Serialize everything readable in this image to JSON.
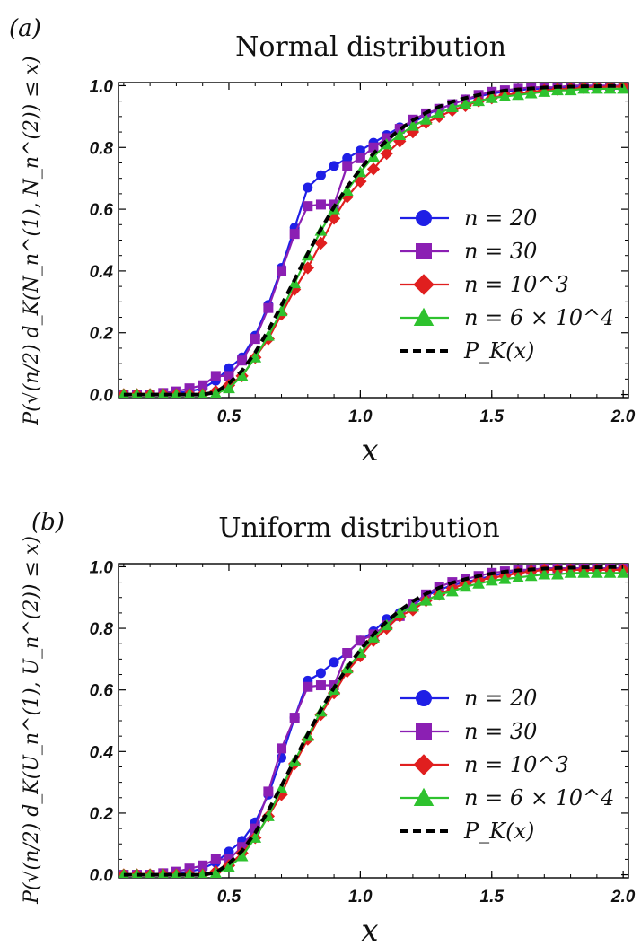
{
  "chart_data": [
    {
      "type": "line",
      "panel_label": "(a)",
      "title": "Normal distribution",
      "xlabel": "x",
      "ylabel": "P(√(n/2) d_K(N_n^(1), N_n^(2)) ≤ x)",
      "xlim": [
        0.08,
        2.02
      ],
      "ylim": [
        -0.01,
        1.01
      ],
      "xticks": [
        "0.5",
        "1.0",
        "1.5",
        "2.0"
      ],
      "yticks": [
        "0.0",
        "0.2",
        "0.4",
        "0.6",
        "0.8",
        "1.0"
      ],
      "legend_position": "center-right",
      "series": [
        {
          "name": "n = 20",
          "color": "#1f1fe6",
          "marker": "circle",
          "x": [
            0.1,
            0.15,
            0.2,
            0.25,
            0.3,
            0.35,
            0.4,
            0.45,
            0.5,
            0.55,
            0.6,
            0.65,
            0.7,
            0.75,
            0.8,
            0.85,
            0.9,
            0.95,
            1.0,
            1.05,
            1.1,
            1.15,
            1.2,
            1.25,
            1.3,
            1.35,
            1.4,
            1.45,
            1.5,
            1.55,
            1.6,
            1.65,
            1.7,
            1.75,
            1.8,
            1.85,
            1.9,
            1.95,
            2.0
          ],
          "y": [
            0.0,
            0.0,
            0.0,
            0.0,
            0.005,
            0.01,
            0.02,
            0.045,
            0.085,
            0.12,
            0.19,
            0.29,
            0.41,
            0.54,
            0.67,
            0.71,
            0.74,
            0.765,
            0.79,
            0.815,
            0.84,
            0.865,
            0.88,
            0.905,
            0.925,
            0.94,
            0.955,
            0.965,
            0.975,
            0.98,
            0.985,
            0.99,
            0.99,
            0.99,
            0.995,
            0.995,
            0.995,
            0.995,
            1.0
          ]
        },
        {
          "name": "n = 30",
          "color": "#8b1fb3",
          "marker": "square",
          "x": [
            0.1,
            0.15,
            0.2,
            0.25,
            0.3,
            0.35,
            0.4,
            0.45,
            0.5,
            0.55,
            0.6,
            0.65,
            0.7,
            0.75,
            0.8,
            0.85,
            0.9,
            0.95,
            1.0,
            1.05,
            1.1,
            1.15,
            1.2,
            1.25,
            1.3,
            1.35,
            1.4,
            1.45,
            1.5,
            1.55,
            1.6,
            1.65,
            1.7,
            1.75,
            1.8,
            1.85,
            1.9,
            1.95,
            2.0
          ],
          "y": [
            0.0,
            0.0,
            0.0,
            0.005,
            0.01,
            0.02,
            0.03,
            0.06,
            0.06,
            0.11,
            0.18,
            0.28,
            0.4,
            0.52,
            0.61,
            0.615,
            0.615,
            0.74,
            0.765,
            0.8,
            0.83,
            0.86,
            0.89,
            0.91,
            0.925,
            0.94,
            0.955,
            0.97,
            0.98,
            0.985,
            0.99,
            0.995,
            0.995,
            0.995,
            1.0,
            1.0,
            1.0,
            1.0,
            1.0
          ]
        },
        {
          "name": "n = 10^3",
          "color": "#e01f1f",
          "marker": "diamond",
          "x": [
            0.1,
            0.15,
            0.2,
            0.25,
            0.3,
            0.35,
            0.4,
            0.45,
            0.5,
            0.55,
            0.6,
            0.65,
            0.7,
            0.75,
            0.8,
            0.85,
            0.9,
            0.95,
            1.0,
            1.05,
            1.1,
            1.15,
            1.2,
            1.25,
            1.3,
            1.35,
            1.4,
            1.45,
            1.5,
            1.55,
            1.6,
            1.65,
            1.7,
            1.75,
            1.8,
            1.85,
            1.9,
            1.95,
            2.0
          ],
          "y": [
            0.0,
            0.0,
            0.0,
            0.0,
            0.0,
            0.0,
            0.0,
            0.01,
            0.03,
            0.06,
            0.12,
            0.18,
            0.26,
            0.34,
            0.41,
            0.49,
            0.57,
            0.64,
            0.69,
            0.73,
            0.78,
            0.82,
            0.85,
            0.88,
            0.9,
            0.92,
            0.935,
            0.95,
            0.96,
            0.97,
            0.975,
            0.98,
            0.985,
            0.988,
            0.99,
            0.993,
            0.995,
            0.996,
            0.997
          ]
        },
        {
          "name": "n = 6 × 10^4",
          "color": "#2ec22e",
          "marker": "triangle",
          "x": [
            0.1,
            0.15,
            0.2,
            0.25,
            0.3,
            0.35,
            0.4,
            0.45,
            0.5,
            0.55,
            0.6,
            0.65,
            0.7,
            0.75,
            0.8,
            0.85,
            0.9,
            0.95,
            1.0,
            1.05,
            1.1,
            1.15,
            1.2,
            1.25,
            1.3,
            1.35,
            1.4,
            1.45,
            1.5,
            1.55,
            1.6,
            1.65,
            1.7,
            1.75,
            1.8,
            1.85,
            1.9,
            1.95,
            2.0
          ],
          "y": [
            0.0,
            0.0,
            0.0,
            0.0,
            0.0,
            0.0,
            0.0,
            0.003,
            0.02,
            0.06,
            0.12,
            0.19,
            0.27,
            0.36,
            0.45,
            0.53,
            0.6,
            0.66,
            0.72,
            0.77,
            0.81,
            0.84,
            0.87,
            0.89,
            0.91,
            0.93,
            0.94,
            0.95,
            0.96,
            0.965,
            0.97,
            0.975,
            0.98,
            0.985,
            0.985,
            0.99,
            0.99,
            0.99,
            0.99
          ]
        },
        {
          "name": "P_K(x)",
          "color": "#000000",
          "marker": "none",
          "dashed": true,
          "x": [
            0.1,
            0.15,
            0.2,
            0.25,
            0.3,
            0.35,
            0.4,
            0.45,
            0.5,
            0.55,
            0.6,
            0.65,
            0.7,
            0.75,
            0.8,
            0.85,
            0.9,
            0.95,
            1.0,
            1.05,
            1.1,
            1.15,
            1.2,
            1.25,
            1.3,
            1.35,
            1.4,
            1.45,
            1.5,
            1.55,
            1.6,
            1.65,
            1.7,
            1.75,
            1.8,
            1.85,
            1.9,
            1.95,
            2.0
          ],
          "y": [
            0.0,
            0.0,
            0.0,
            0.0,
            0.0,
            0.0,
            0.0,
            0.007,
            0.036,
            0.077,
            0.136,
            0.208,
            0.289,
            0.372,
            0.456,
            0.535,
            0.607,
            0.672,
            0.73,
            0.78,
            0.822,
            0.858,
            0.888,
            0.912,
            0.932,
            0.948,
            0.96,
            0.97,
            0.978,
            0.984,
            0.988,
            0.991,
            0.994,
            0.996,
            0.997,
            0.998,
            0.998,
            0.999,
            0.999
          ]
        }
      ]
    },
    {
      "type": "line",
      "panel_label": "(b)",
      "title": "Uniform distribution",
      "xlabel": "x",
      "ylabel": "P(√(n/2) d_K(U_n^(1), U_n^(2)) ≤ x)",
      "xlim": [
        0.08,
        2.02
      ],
      "ylim": [
        -0.01,
        1.01
      ],
      "xticks": [
        "0.5",
        "1.0",
        "1.5",
        "2.0"
      ],
      "yticks": [
        "0.0",
        "0.2",
        "0.4",
        "0.6",
        "0.8",
        "1.0"
      ],
      "legend_position": "center-right",
      "series": [
        {
          "name": "n = 20",
          "color": "#1f1fe6",
          "marker": "circle",
          "x": [
            0.1,
            0.15,
            0.2,
            0.25,
            0.3,
            0.35,
            0.4,
            0.45,
            0.5,
            0.55,
            0.6,
            0.65,
            0.7,
            0.75,
            0.8,
            0.85,
            0.9,
            0.95,
            1.0,
            1.05,
            1.1,
            1.15,
            1.2,
            1.25,
            1.3,
            1.35,
            1.4,
            1.45,
            1.5,
            1.55,
            1.6,
            1.65,
            1.7,
            1.75,
            1.8,
            1.85,
            1.9,
            1.95,
            2.0
          ],
          "y": [
            0.0,
            0.0,
            0.0,
            0.0,
            0.005,
            0.01,
            0.02,
            0.04,
            0.075,
            0.11,
            0.17,
            0.26,
            0.38,
            0.51,
            0.63,
            0.655,
            0.69,
            0.72,
            0.76,
            0.79,
            0.83,
            0.85,
            0.875,
            0.905,
            0.925,
            0.94,
            0.95,
            0.96,
            0.97,
            0.98,
            0.985,
            0.99,
            0.99,
            0.99,
            0.995,
            0.995,
            0.995,
            0.995,
            0.995
          ]
        },
        {
          "name": "n = 30",
          "color": "#8b1fb3",
          "marker": "square",
          "x": [
            0.1,
            0.15,
            0.2,
            0.25,
            0.3,
            0.35,
            0.4,
            0.45,
            0.5,
            0.55,
            0.6,
            0.65,
            0.7,
            0.75,
            0.8,
            0.85,
            0.9,
            0.95,
            1.0,
            1.05,
            1.1,
            1.15,
            1.2,
            1.25,
            1.3,
            1.35,
            1.4,
            1.45,
            1.5,
            1.55,
            1.6,
            1.65,
            1.7,
            1.75,
            1.8,
            1.85,
            1.9,
            1.95,
            2.0
          ],
          "y": [
            0.0,
            0.0,
            0.0,
            0.005,
            0.01,
            0.02,
            0.03,
            0.05,
            0.05,
            0.09,
            0.15,
            0.27,
            0.41,
            0.51,
            0.61,
            0.615,
            0.615,
            0.72,
            0.76,
            0.78,
            0.81,
            0.84,
            0.88,
            0.91,
            0.935,
            0.95,
            0.96,
            0.97,
            0.98,
            0.985,
            0.99,
            0.99,
            0.995,
            0.995,
            0.995,
            0.995,
            0.995,
            0.995,
            0.995
          ]
        },
        {
          "name": "n = 10^3",
          "color": "#e01f1f",
          "marker": "diamond",
          "x": [
            0.1,
            0.15,
            0.2,
            0.25,
            0.3,
            0.35,
            0.4,
            0.45,
            0.5,
            0.55,
            0.6,
            0.65,
            0.7,
            0.75,
            0.8,
            0.85,
            0.9,
            0.95,
            1.0,
            1.05,
            1.1,
            1.15,
            1.2,
            1.25,
            1.3,
            1.35,
            1.4,
            1.45,
            1.5,
            1.55,
            1.6,
            1.65,
            1.7,
            1.75,
            1.8,
            1.85,
            1.9,
            1.95,
            2.0
          ],
          "y": [
            0.0,
            0.0,
            0.0,
            0.0,
            0.0,
            0.0,
            0.0,
            0.01,
            0.03,
            0.07,
            0.12,
            0.19,
            0.26,
            0.36,
            0.44,
            0.52,
            0.59,
            0.66,
            0.71,
            0.76,
            0.8,
            0.84,
            0.86,
            0.89,
            0.91,
            0.93,
            0.945,
            0.955,
            0.965,
            0.97,
            0.98,
            0.985,
            0.99,
            0.99,
            0.99,
            0.99,
            0.99,
            0.99,
            0.99
          ]
        },
        {
          "name": "n = 6 × 10^4",
          "color": "#2ec22e",
          "marker": "triangle",
          "x": [
            0.1,
            0.15,
            0.2,
            0.25,
            0.3,
            0.35,
            0.4,
            0.45,
            0.5,
            0.55,
            0.6,
            0.65,
            0.7,
            0.75,
            0.8,
            0.85,
            0.9,
            0.95,
            1.0,
            1.05,
            1.1,
            1.15,
            1.2,
            1.25,
            1.3,
            1.35,
            1.4,
            1.45,
            1.5,
            1.55,
            1.6,
            1.65,
            1.7,
            1.75,
            1.8,
            1.85,
            1.9,
            1.95,
            2.0
          ],
          "y": [
            0.0,
            0.0,
            0.0,
            0.0,
            0.0,
            0.0,
            0.0,
            0.005,
            0.025,
            0.06,
            0.12,
            0.19,
            0.28,
            0.37,
            0.45,
            0.53,
            0.6,
            0.67,
            0.72,
            0.77,
            0.81,
            0.85,
            0.87,
            0.89,
            0.91,
            0.92,
            0.935,
            0.945,
            0.955,
            0.96,
            0.965,
            0.97,
            0.975,
            0.975,
            0.98,
            0.98,
            0.98,
            0.98,
            0.98
          ]
        },
        {
          "name": "P_K(x)",
          "color": "#000000",
          "marker": "none",
          "dashed": true,
          "x": [
            0.1,
            0.15,
            0.2,
            0.25,
            0.3,
            0.35,
            0.4,
            0.45,
            0.5,
            0.55,
            0.6,
            0.65,
            0.7,
            0.75,
            0.8,
            0.85,
            0.9,
            0.95,
            1.0,
            1.05,
            1.1,
            1.15,
            1.2,
            1.25,
            1.3,
            1.35,
            1.4,
            1.45,
            1.5,
            1.55,
            1.6,
            1.65,
            1.7,
            1.75,
            1.8,
            1.85,
            1.9,
            1.95,
            2.0
          ],
          "y": [
            0.0,
            0.0,
            0.0,
            0.0,
            0.0,
            0.0,
            0.0,
            0.007,
            0.036,
            0.077,
            0.136,
            0.208,
            0.289,
            0.372,
            0.456,
            0.535,
            0.607,
            0.672,
            0.73,
            0.78,
            0.822,
            0.858,
            0.888,
            0.912,
            0.932,
            0.948,
            0.96,
            0.97,
            0.978,
            0.984,
            0.988,
            0.991,
            0.994,
            0.996,
            0.997,
            0.998,
            0.998,
            0.999,
            0.999
          ]
        }
      ]
    }
  ]
}
